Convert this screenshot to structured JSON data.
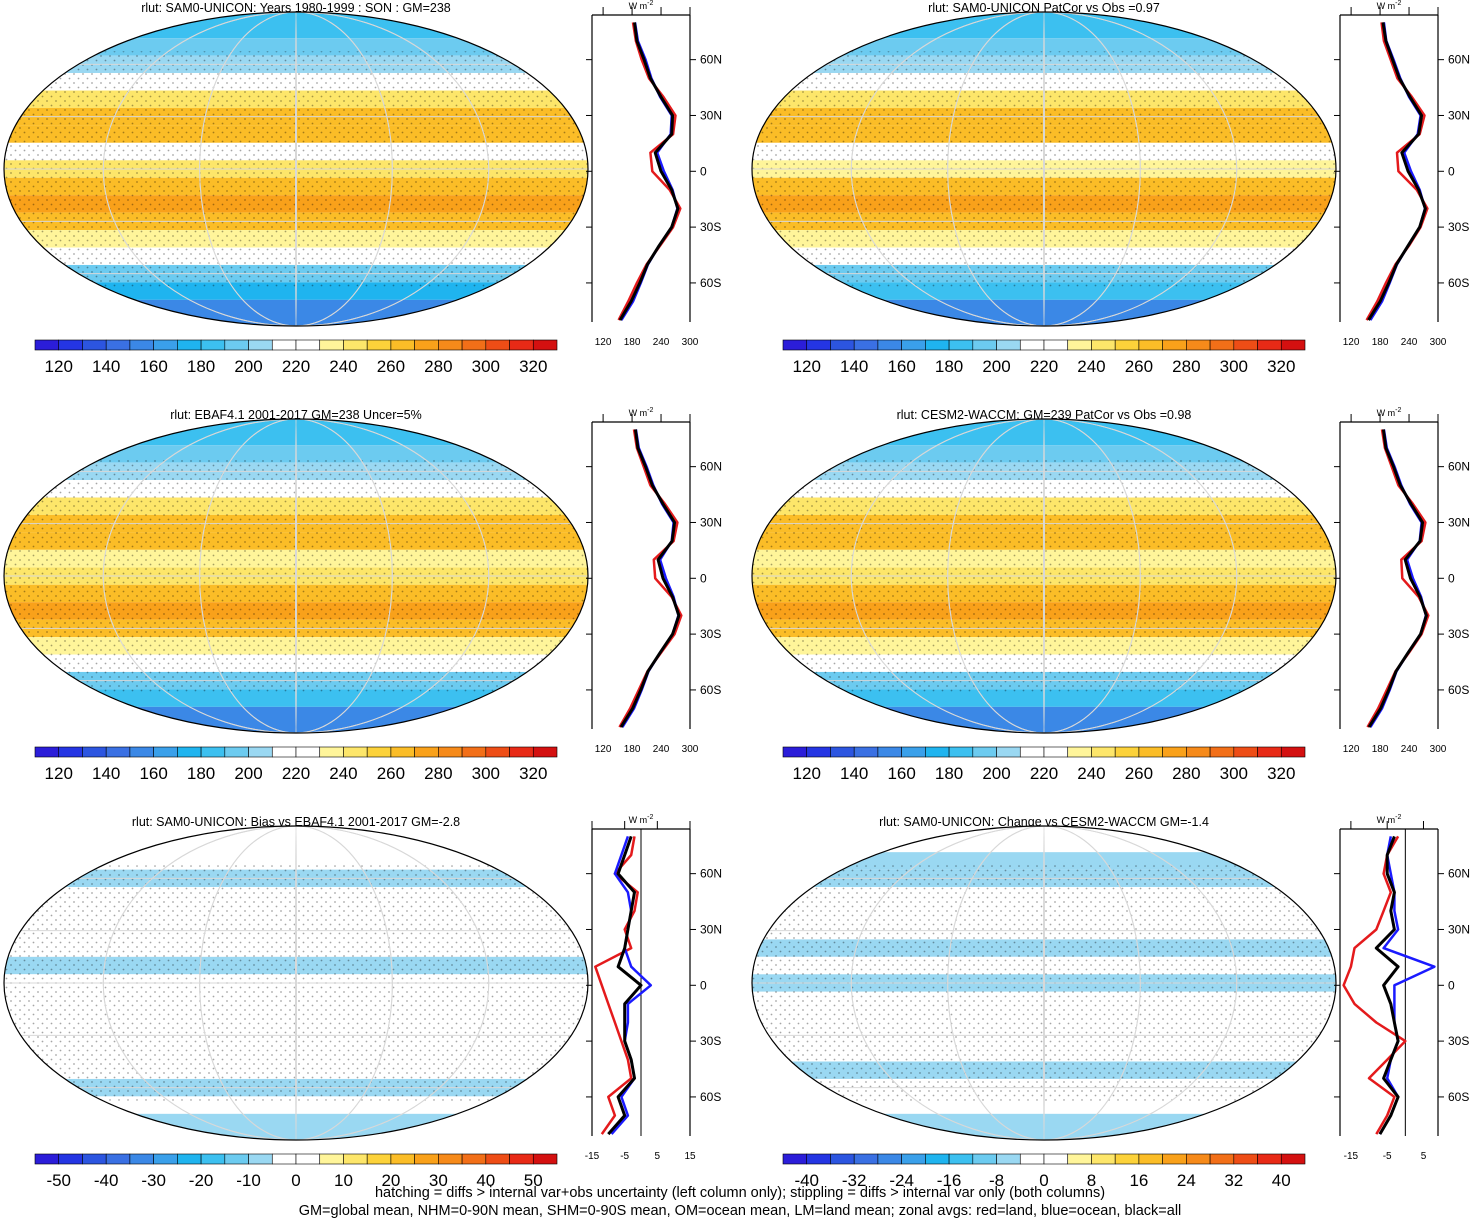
{
  "palette": [
    "#2b1dd9",
    "#2435e3",
    "#2c55e0",
    "#3a70e3",
    "#3b88e6",
    "#3aa0ea",
    "#1fb4ef",
    "#3cc0f0",
    "#6ccbf0",
    "#9ad8f2",
    "#ffffff",
    "#ffffff",
    "#fff59a",
    "#fde66a",
    "#fcd23a",
    "#fbbd27",
    "#f9a11a",
    "#f68a1a",
    "#f26f18",
    "#ee4d16",
    "#e82a16",
    "#d41010"
  ],
  "latitudes": [
    80,
    70,
    60,
    50,
    40,
    30,
    20,
    10,
    0,
    -10,
    -20,
    -30,
    -40,
    -50,
    -60,
    -70,
    -80
  ],
  "panels": [
    {
      "title": "rlut: SAM0-UNICON: Years 1980-1999 : SON : GM=238",
      "colorbar": {
        "cblim": [
          110,
          330
        ],
        "ticks": [
          120,
          140,
          160,
          180,
          200,
          220,
          240,
          260,
          280,
          300,
          320
        ]
      },
      "zonal": {
        "unit": {
          "base": "W m",
          "sup": "-2"
        },
        "xlim": [
          97,
          300
        ],
        "xticks": [
          120,
          180,
          240,
          300
        ],
        "ylim": [
          -81,
          84
        ],
        "yticks": [
          {
            "value": 60,
            "label": "60N"
          },
          {
            "value": 30,
            "label": "30N"
          },
          0,
          {
            "value": -30,
            "label": "30S"
          },
          {
            "value": -60,
            "label": "60S"
          }
        ],
        "series": [
          {
            "color": "#e41a1c",
            "values": [
              182,
              188,
              200,
              215,
              245,
              270,
              265,
              218,
              222,
              258,
              280,
              265,
              238,
              210,
              190,
              172,
              152
            ]
          },
          {
            "color": "#1a1aff",
            "values": [
              186,
              192,
              208,
              220,
              238,
              262,
              260,
              232,
              246,
              264,
              274,
              262,
              236,
              213,
              198,
              182,
              158
            ]
          },
          {
            "color": "#000000",
            "values": [
              185,
              190,
              205,
              218,
              240,
              264,
              262,
              228,
              240,
              262,
              275,
              262,
              236,
              212,
              196,
              178,
              155
            ]
          }
        ]
      }
    },
    {
      "title": "rlut: SAM0-UNICON PatCor vs Obs =0.97",
      "colorbar": {
        "cblim": [
          110,
          330
        ],
        "ticks": [
          120,
          140,
          160,
          180,
          200,
          220,
          240,
          260,
          280,
          300,
          320
        ]
      },
      "zonal": {
        "unit": {
          "base": "W m",
          "sup": "-2"
        },
        "xlim": [
          97,
          300
        ],
        "xticks": [
          120,
          180,
          240,
          300
        ],
        "ylim": [
          -81,
          84
        ],
        "yticks": [
          {
            "value": 60,
            "label": "60N"
          },
          {
            "value": 30,
            "label": "30N"
          },
          0,
          {
            "value": -30,
            "label": "30S"
          },
          {
            "value": -60,
            "label": "60S"
          }
        ],
        "series": [
          {
            "color": "#e41a1c",
            "values": [
              183,
              188,
              202,
              216,
              246,
              272,
              262,
              215,
              218,
              256,
              278,
              264,
              240,
              212,
              192,
              174,
              152
            ]
          },
          {
            "color": "#1a1aff",
            "values": [
              188,
              193,
              208,
              222,
              240,
              264,
              258,
              230,
              244,
              262,
              273,
              262,
              238,
              215,
              200,
              184,
              160
            ]
          },
          {
            "color": "#000000",
            "values": [
              186,
              192,
              206,
              220,
              242,
              266,
              260,
              225,
              238,
              260,
              274,
              262,
              238,
              214,
              198,
              180,
              156
            ]
          }
        ]
      }
    },
    {
      "title": "rlut: EBAF4.1 2001-2017 GM=238 Uncer=5%",
      "colorbar": {
        "cblim": [
          110,
          330
        ],
        "ticks": [
          120,
          140,
          160,
          180,
          200,
          220,
          240,
          260,
          280,
          300,
          320
        ]
      },
      "zonal": {
        "unit": {
          "base": "W m",
          "sup": "-2"
        },
        "xlim": [
          97,
          300
        ],
        "xticks": [
          120,
          180,
          240,
          300
        ],
        "ylim": [
          -81,
          84
        ],
        "yticks": [
          {
            "value": 60,
            "label": "60N"
          },
          {
            "value": 30,
            "label": "30N"
          },
          0,
          {
            "value": -30,
            "label": "30S"
          },
          {
            "value": -60,
            "label": "60S"
          }
        ],
        "series": [
          {
            "color": "#e41a1c",
            "values": [
              184,
              190,
              204,
              218,
              248,
              274,
              266,
              225,
              228,
              262,
              282,
              268,
              240,
              212,
              194,
              176,
              154
            ]
          },
          {
            "color": "#1a1aff",
            "values": [
              188,
              194,
              210,
              224,
              242,
              266,
              262,
              238,
              250,
              266,
              276,
              264,
              238,
              214,
              200,
              184,
              160
            ]
          },
          {
            "color": "#000000",
            "values": [
              187,
              192,
              208,
              222,
              244,
              268,
              263,
              234,
              244,
              264,
              277,
              264,
              238,
              213,
              198,
              181,
              157
            ]
          }
        ]
      }
    },
    {
      "title": "rlut: CESM2-WACCM: GM=239 PatCor vs Obs =0.98",
      "colorbar": {
        "cblim": [
          110,
          330
        ],
        "ticks": [
          120,
          140,
          160,
          180,
          200,
          220,
          240,
          260,
          280,
          300,
          320
        ]
      },
      "zonal": {
        "unit": {
          "base": "W m",
          "sup": "-2"
        },
        "xlim": [
          97,
          300
        ],
        "xticks": [
          120,
          180,
          240,
          300
        ],
        "ylim": [
          -81,
          84
        ],
        "yticks": [
          {
            "value": 60,
            "label": "60N"
          },
          {
            "value": 30,
            "label": "30N"
          },
          0,
          {
            "value": -30,
            "label": "30S"
          },
          {
            "value": -60,
            "label": "60S"
          }
        ],
        "series": [
          {
            "color": "#e41a1c",
            "values": [
              184,
              190,
              204,
              218,
              248,
              274,
              266,
              224,
              226,
              260,
              280,
              266,
              240,
              212,
              194,
              176,
              154
            ]
          },
          {
            "color": "#1a1aff",
            "values": [
              188,
              194,
              210,
              224,
              242,
              266,
              262,
              236,
              248,
              265,
              275,
              264,
              238,
              214,
              200,
              184,
              160
            ]
          },
          {
            "color": "#000000",
            "values": [
              187,
              192,
              208,
              222,
              244,
              268,
              263,
              232,
              243,
              263,
              276,
              264,
              238,
              213,
              198,
              181,
              157
            ]
          }
        ]
      }
    },
    {
      "title": "rlut: SAM0-UNICON: Bias vs EBAF4.1 2001-2017  GM=-2.8",
      "colorbar": {
        "cblim": [
          -55,
          55
        ],
        "ticks": [
          -50,
          -40,
          -30,
          -20,
          -10,
          0,
          10,
          20,
          30,
          40,
          50
        ]
      },
      "zonal": {
        "unit": {
          "base": "W m",
          "sup": "-2"
        },
        "xlim": [
          -15,
          15
        ],
        "xticks": [
          -15,
          -5,
          5,
          15
        ],
        "ylim": [
          -81,
          84
        ],
        "yticks": [
          {
            "value": 60,
            "label": "60N"
          },
          {
            "value": 30,
            "label": "30N"
          },
          0,
          {
            "value": -30,
            "label": "30S"
          },
          {
            "value": -60,
            "label": "60S"
          }
        ],
        "series": [
          {
            "color": "#e41a1c",
            "values": [
              -2,
              -3,
              -8,
              -1,
              -2,
              -5,
              -3,
              -14,
              -12,
              -10,
              -8,
              -6,
              -4,
              -3,
              -10,
              -8,
              -12
            ]
          },
          {
            "color": "#1a1aff",
            "values": [
              -4,
              -6,
              -8,
              -4,
              -3,
              -4,
              -5,
              -3,
              3,
              -4,
              -4,
              -5,
              -3,
              -2,
              -6,
              -4,
              -9
            ]
          },
          {
            "color": "#000000",
            "values": [
              -3,
              -5,
              -7,
              -2,
              -3,
              -4,
              -5,
              -7,
              0,
              -5,
              -5,
              -5,
              -3,
              -2,
              -7,
              -5,
              -10
            ]
          }
        ]
      }
    },
    {
      "title": "rlut: SAM0-UNICON: Change vs CESM2-WACCM GM=-1.4",
      "colorbar": {
        "cblim": [
          -44,
          44
        ],
        "ticks": [
          -40,
          -32,
          -24,
          -16,
          -8,
          0,
          8,
          16,
          24,
          32,
          40
        ]
      },
      "zonal": {
        "unit": {
          "base": "W m",
          "sup": "-2"
        },
        "xlim": [
          -18,
          9
        ],
        "xticks": [
          -15,
          -5,
          5
        ],
        "ylim": [
          -81,
          84
        ],
        "yticks": [
          {
            "value": 60,
            "label": "60N"
          },
          {
            "value": 30,
            "label": "30N"
          },
          0,
          {
            "value": -30,
            "label": "30S"
          },
          {
            "value": -60,
            "label": "60S"
          }
        ],
        "series": [
          {
            "color": "#e41a1c",
            "values": [
              -2,
              -5,
              -6,
              -4,
              -6,
              -8,
              -14,
              -15,
              -17,
              -14,
              -8,
              0,
              -5,
              -10,
              -3,
              -5,
              -8
            ]
          },
          {
            "color": "#1a1aff",
            "values": [
              -4,
              -5,
              -4,
              -3,
              -3,
              -2,
              -6,
              8,
              -3,
              -3,
              -3,
              -2,
              -4,
              -5,
              -2,
              -4,
              -7
            ]
          },
          {
            "color": "#000000",
            "values": [
              -3,
              -5,
              -5,
              -3,
              -4,
              -3,
              -8,
              -2,
              -6,
              -4,
              -3,
              -2,
              -4,
              -6,
              -2,
              -4,
              -7
            ]
          }
        ]
      }
    }
  ],
  "footer": [
    "hatching = diffs > internal var+obs uncertainty (left column only); stippling = diffs > internal var only (both columns)",
    "GM=global mean, NHM=0-90N mean, SHM=0-90S mean, OM=ocean mean, LM=land mean; zonal avgs: red=land, blue=ocean, black=all"
  ]
}
